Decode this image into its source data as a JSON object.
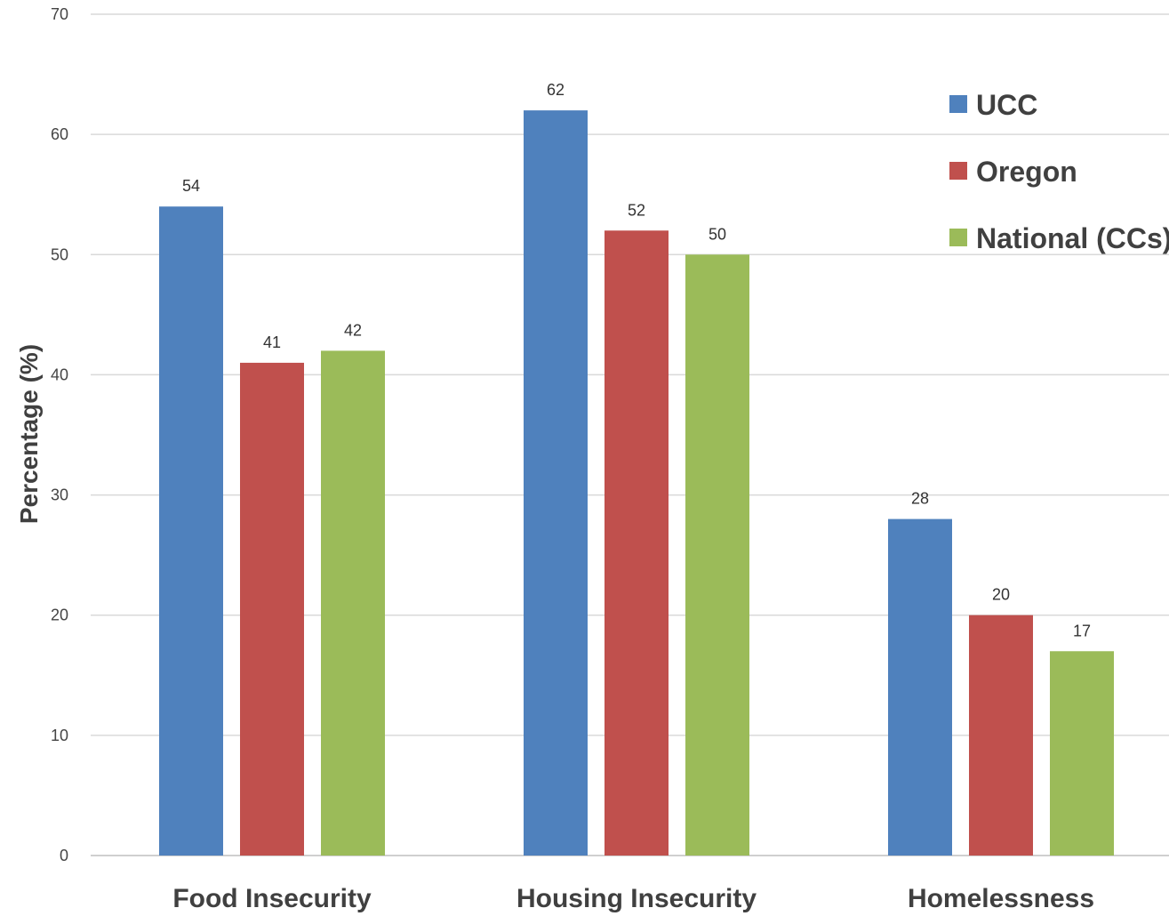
{
  "chart_data": {
    "type": "bar",
    "categories": [
      "Food Insecurity",
      "Housing Insecurity",
      "Homelessness"
    ],
    "series": [
      {
        "name": "UCC",
        "color": "#4F81BD",
        "values": [
          54,
          62,
          28
        ]
      },
      {
        "name": "Oregon",
        "color": "#C0504D",
        "values": [
          41,
          52,
          20
        ]
      },
      {
        "name": "National (CCs)",
        "color": "#9BBB59",
        "values": [
          42,
          50,
          17
        ]
      }
    ],
    "ylabel": "Percentage (%)",
    "xlabel": "",
    "ylim": [
      0,
      70
    ],
    "yticks": [
      0,
      10,
      20,
      30,
      40,
      50,
      60,
      70
    ],
    "grid": true,
    "legend_position": "top-right",
    "data_labels": true
  }
}
